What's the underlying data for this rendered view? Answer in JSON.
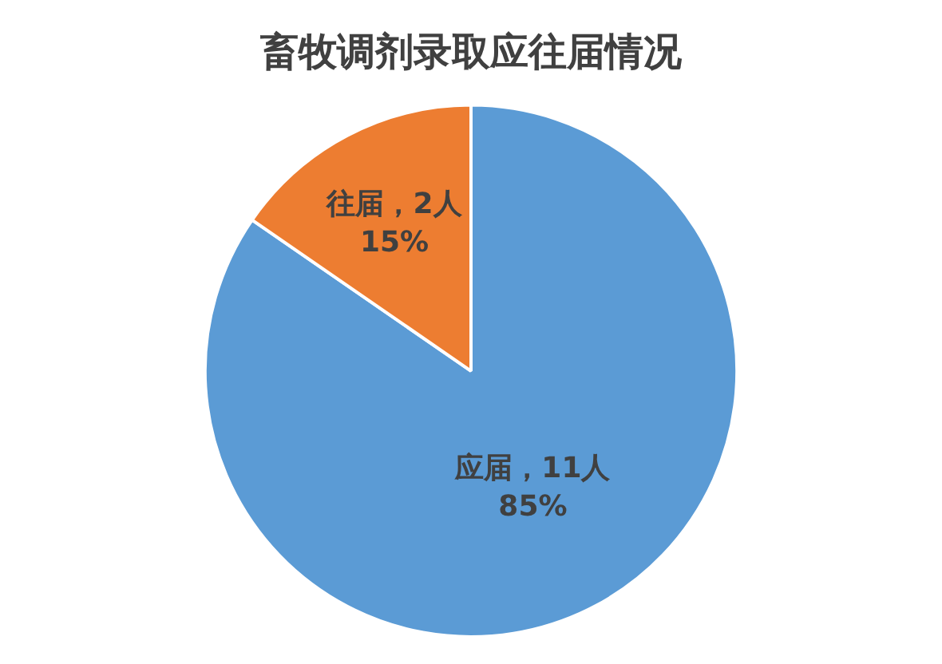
{
  "chart_data": {
    "type": "pie",
    "title": "畜牧调剂录取应往届情况",
    "categories": [
      "应届",
      "往届"
    ],
    "values": [
      11,
      2
    ],
    "colors": [
      "#5b9bd5",
      "#ed7d31"
    ],
    "value_labels": [
      "，11人\n85%",
      "，2人\n15%"
    ],
    "legend": false
  }
}
